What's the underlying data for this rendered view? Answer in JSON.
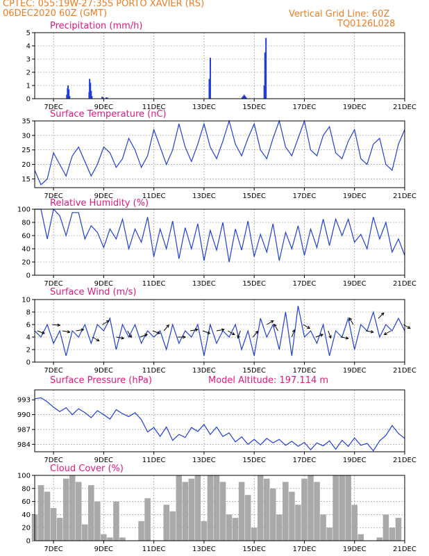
{
  "header": {
    "line1_left": "CPTEC:   055:19W-27:35S   PORTO XAVIER (RS)",
    "line2_left": "06DEC2020 60Z (GMT)",
    "line1_right": "Vertical Grid Line: 60Z",
    "line2_right": "TQ0126L028"
  },
  "colors": {
    "header": "#ee7d22",
    "title": "#e0187f",
    "line": "#1f3fd6",
    "bar": "#1f3fd6",
    "cloud": "#a9a9a9",
    "grid": "#888888"
  },
  "x_axis": {
    "start": "06DEC2020 06Z",
    "end": "21DEC2020 00Z",
    "ticks": [
      "7DEC",
      "9DEC",
      "11DEC",
      "13DEC",
      "15DEC",
      "17DEC",
      "19DEC",
      "21DEC"
    ]
  },
  "chart_data": [
    {
      "type": "bar",
      "title": "Precipitation (mm/h)",
      "ylim": [
        0,
        5
      ],
      "yticks": [
        0,
        1,
        2,
        3,
        4,
        5
      ],
      "x_unit": "days since 06DEC2020 00Z",
      "x": [
        1.53,
        1.56,
        1.58,
        1.61,
        1.64,
        2.42,
        2.44,
        2.47,
        2.5,
        2.53,
        2.94,
        2.97,
        3.1,
        3.15,
        7.21,
        7.25,
        8.52,
        8.56,
        8.6,
        8.64,
        8.68,
        9.4,
        9.43,
        9.47
      ],
      "values": [
        0.3,
        0.8,
        1.0,
        0.7,
        0.2,
        0.5,
        1.5,
        1.2,
        0.6,
        0.2,
        0.15,
        0.1,
        0.1,
        0.08,
        1.5,
        3.1,
        0.1,
        0.2,
        0.3,
        0.2,
        0.1,
        1.0,
        3.5,
        4.6
      ]
    },
    {
      "type": "line",
      "title": "Surface Temperature (nC)",
      "ylim": [
        12,
        35
      ],
      "yticks": [
        15,
        20,
        25,
        30,
        35
      ],
      "x_unit": "days since 06DEC2020 00Z",
      "x": [
        0.25,
        0.5,
        0.75,
        1.0,
        1.25,
        1.5,
        1.75,
        2.0,
        2.25,
        2.5,
        2.75,
        3.0,
        3.25,
        3.5,
        3.75,
        4.0,
        4.25,
        4.5,
        4.75,
        5.0,
        5.25,
        5.5,
        5.75,
        6.0,
        6.25,
        6.5,
        6.75,
        7.0,
        7.25,
        7.5,
        7.75,
        8.0,
        8.25,
        8.5,
        8.75,
        9.0,
        9.25,
        9.5,
        9.75,
        10.0,
        10.25,
        10.5,
        10.75,
        11.0,
        11.25,
        11.5,
        11.75,
        12.0,
        12.25,
        12.5,
        12.75,
        13.0,
        13.25,
        13.5,
        13.75,
        14.0,
        14.25,
        14.5,
        14.75,
        15.0
      ],
      "values": [
        18,
        13,
        15,
        24,
        20,
        16,
        23,
        26,
        21,
        16,
        20,
        26,
        24,
        19,
        22,
        29,
        25,
        19,
        23,
        32,
        26,
        20,
        25,
        34,
        26,
        21,
        27,
        34,
        26,
        22,
        28,
        35,
        27,
        23,
        29,
        34,
        25,
        22,
        29,
        35,
        26,
        23,
        29,
        35,
        25,
        23,
        30,
        33,
        24,
        22,
        28,
        32,
        22,
        20,
        27,
        29,
        20,
        18,
        27,
        32
      ]
    },
    {
      "type": "line",
      "title": "Relative Humidity (%)",
      "ylim": [
        0,
        100
      ],
      "yticks": [
        0,
        20,
        40,
        60,
        80,
        100
      ],
      "x_unit": "days since 06DEC2020 00Z",
      "x": [
        0.25,
        0.5,
        0.75,
        1.0,
        1.25,
        1.5,
        1.75,
        2.0,
        2.25,
        2.5,
        2.75,
        3.0,
        3.25,
        3.5,
        3.75,
        4.0,
        4.25,
        4.5,
        4.75,
        5.0,
        5.25,
        5.5,
        5.75,
        6.0,
        6.25,
        6.5,
        6.75,
        7.0,
        7.25,
        7.5,
        7.75,
        8.0,
        8.25,
        8.5,
        8.75,
        9.0,
        9.25,
        9.5,
        9.75,
        10.0,
        10.25,
        10.5,
        10.75,
        11.0,
        11.25,
        11.5,
        11.75,
        12.0,
        12.25,
        12.5,
        12.75,
        13.0,
        13.25,
        13.5,
        13.75,
        14.0,
        14.25,
        14.5,
        14.75,
        15.0
      ],
      "values": [
        100,
        100,
        55,
        100,
        90,
        60,
        95,
        95,
        55,
        75,
        65,
        42,
        70,
        55,
        85,
        40,
        70,
        50,
        88,
        28,
        70,
        40,
        82,
        25,
        72,
        40,
        78,
        22,
        68,
        38,
        80,
        20,
        70,
        38,
        82,
        28,
        62,
        35,
        78,
        22,
        65,
        40,
        75,
        30,
        70,
        42,
        85,
        45,
        85,
        60,
        85,
        50,
        62,
        40,
        88,
        55,
        80,
        35,
        55,
        30
      ]
    },
    {
      "type": "line",
      "title": "Surface Wind (m/s)",
      "ylim": [
        0,
        10
      ],
      "yticks": [
        0,
        2,
        4,
        6,
        8,
        10
      ],
      "x_unit": "days since 06DEC2020 00Z",
      "x": [
        0.25,
        0.5,
        0.75,
        1.0,
        1.25,
        1.5,
        1.75,
        2.0,
        2.25,
        2.5,
        2.75,
        3.0,
        3.25,
        3.5,
        3.75,
        4.0,
        4.25,
        4.5,
        4.75,
        5.0,
        5.25,
        5.5,
        5.75,
        6.0,
        6.25,
        6.5,
        6.75,
        7.0,
        7.25,
        7.5,
        7.75,
        8.0,
        8.25,
        8.5,
        8.75,
        9.0,
        9.25,
        9.5,
        9.75,
        10.0,
        10.25,
        10.5,
        10.75,
        11.0,
        11.25,
        11.5,
        11.75,
        12.0,
        12.25,
        12.5,
        12.75,
        13.0,
        13.25,
        13.5,
        13.75,
        14.0,
        14.25,
        14.5,
        14.75,
        15.0
      ],
      "values": [
        5,
        4,
        6,
        3,
        5,
        1,
        5,
        4,
        6,
        3,
        6,
        5,
        7,
        2,
        6,
        4,
        6,
        3,
        5,
        4,
        5,
        2,
        6,
        3,
        5,
        4,
        6,
        1,
        6,
        3,
        5,
        4,
        6,
        2,
        5,
        1,
        7,
        4,
        6,
        2,
        8,
        1,
        9,
        4,
        5,
        3,
        6,
        1,
        5,
        4,
        7,
        2,
        6,
        5,
        8,
        4,
        6,
        5,
        7,
        5
      ],
      "arrows_x": [
        0.35,
        0.95,
        1.35,
        1.9,
        2.55,
        2.95,
        3.5,
        3.95,
        4.45,
        4.95,
        5.4,
        5.95,
        6.45,
        6.95,
        7.5,
        7.95,
        8.45,
        8.95,
        9.5,
        9.95,
        10.5,
        10.95,
        11.45,
        11.95,
        12.45,
        12.95,
        13.45,
        13.95,
        14.45,
        14.95
      ],
      "arrows_speed": [
        5,
        6,
        5,
        5,
        4,
        6,
        4,
        5,
        4,
        5,
        5,
        4,
        5,
        5,
        5,
        5,
        5,
        4,
        6,
        5,
        4,
        6,
        4,
        5,
        4,
        6,
        5,
        7,
        5,
        6
      ],
      "arrows_dir_deg": [
        110,
        95,
        100,
        80,
        120,
        60,
        100,
        150,
        70,
        110,
        40,
        90,
        80,
        110,
        80,
        120,
        200,
        40,
        60,
        330,
        20,
        120,
        70,
        160,
        100,
        330,
        100,
        45,
        240,
        120
      ]
    },
    {
      "type": "line",
      "title": "Surface Pressure (hPa)",
      "annotation": "Model Altitude: 197.114 m",
      "ylim": [
        982.5,
        995
      ],
      "yticks": [
        984,
        987,
        990,
        993
      ],
      "x_unit": "days since 06DEC2020 00Z",
      "x": [
        0.25,
        0.5,
        0.75,
        1.0,
        1.25,
        1.5,
        1.75,
        2.0,
        2.25,
        2.5,
        2.75,
        3.0,
        3.25,
        3.5,
        3.75,
        4.0,
        4.25,
        4.5,
        4.75,
        5.0,
        5.25,
        5.5,
        5.75,
        6.0,
        6.25,
        6.5,
        6.75,
        7.0,
        7.25,
        7.5,
        7.75,
        8.0,
        8.25,
        8.5,
        8.75,
        9.0,
        9.25,
        9.5,
        9.75,
        10.0,
        10.25,
        10.5,
        10.75,
        11.0,
        11.25,
        11.5,
        11.75,
        12.0,
        12.25,
        12.5,
        12.75,
        13.0,
        13.25,
        13.5,
        13.75,
        14.0,
        14.25,
        14.5,
        14.75,
        15.0
      ],
      "values": [
        993.2,
        993.4,
        992.6,
        991.5,
        990.6,
        991.4,
        990.0,
        991.2,
        990.4,
        989.4,
        990.8,
        990.0,
        989.1,
        991.0,
        990.2,
        989.6,
        990.4,
        989.0,
        986.5,
        987.4,
        985.6,
        987.5,
        984.8,
        986.0,
        985.4,
        987.4,
        986.6,
        988.0,
        986.0,
        987.5,
        985.6,
        986.3,
        984.5,
        985.5,
        984.0,
        985.0,
        983.9,
        985.2,
        984.3,
        985.0,
        983.8,
        984.6,
        983.6,
        984.4,
        982.9,
        984.3,
        983.7,
        984.7,
        983.0,
        984.8,
        983.6,
        985.3,
        983.8,
        984.2,
        982.7,
        984.7,
        985.8,
        987.8,
        986.2,
        985.2
      ]
    },
    {
      "type": "bar",
      "title": "Cloud Cover (%)",
      "ylim": [
        0,
        100
      ],
      "yticks": [
        0,
        20,
        40,
        60,
        80,
        100
      ],
      "x_unit": "days since 06DEC2020 00Z",
      "x": [
        0.25,
        0.5,
        0.75,
        1.0,
        1.25,
        1.5,
        1.75,
        2.0,
        2.25,
        2.5,
        2.75,
        3.0,
        3.25,
        3.5,
        3.75,
        4.0,
        4.25,
        4.5,
        4.75,
        5.0,
        5.25,
        5.5,
        5.75,
        6.0,
        6.25,
        6.5,
        6.75,
        7.0,
        7.25,
        7.5,
        7.75,
        8.0,
        8.25,
        8.5,
        8.75,
        9.0,
        9.25,
        9.5,
        9.75,
        10.0,
        10.25,
        10.5,
        10.75,
        11.0,
        11.25,
        11.5,
        11.75,
        12.0,
        12.25,
        12.5,
        12.75,
        13.0,
        13.25,
        13.5,
        13.75,
        14.0,
        14.25,
        14.5,
        14.75,
        15.0
      ],
      "values": [
        40,
        85,
        75,
        50,
        35,
        95,
        100,
        90,
        25,
        85,
        60,
        10,
        5,
        60,
        5,
        0,
        0,
        30,
        65,
        0,
        0,
        55,
        45,
        100,
        90,
        95,
        100,
        30,
        100,
        100,
        90,
        40,
        35,
        90,
        70,
        20,
        100,
        95,
        80,
        40,
        90,
        75,
        55,
        95,
        100,
        90,
        40,
        20,
        100,
        100,
        100,
        55,
        10,
        0,
        0,
        5,
        40,
        20,
        35,
        0
      ]
    }
  ]
}
